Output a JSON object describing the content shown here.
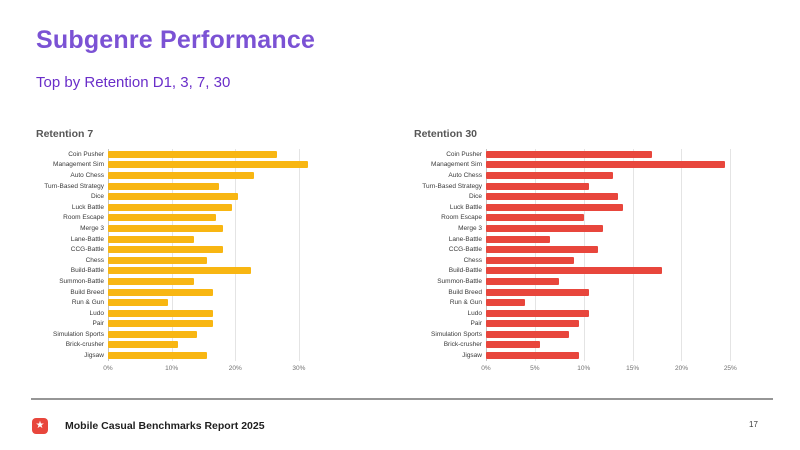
{
  "page": {
    "title": "Subgenre Performance",
    "subtitle": "Top by Retention D1, 3, 7, 30",
    "footer": {
      "logo_icon": "star-icon",
      "report_title": "Mobile Casual Benchmarks Report 2025",
      "page_number": "17"
    },
    "colors": {
      "title_purple": "#7b52d4",
      "subtitle_purple": "#6a2ec9",
      "retention7_yellow": "#f8b612",
      "retention30_red": "#e8463c",
      "footer_logo_red": "#e8463c"
    }
  },
  "chart_data": [
    {
      "type": "bar",
      "orientation": "horizontal",
      "title": "Retention 7",
      "bar_color": "#f8b612",
      "categories": [
        "Coin Pusher",
        "Management Sim",
        "Auto Chess",
        "Turn-Based Strategy",
        "Dice",
        "Luck Battle",
        "Room Escape",
        "Merge 3",
        "Lane-Battle",
        "CCG-Battle",
        "Chess",
        "Build-Battle",
        "Summon-Battle",
        "Build Breed",
        "Run & Gun",
        "Ludo",
        "Pair",
        "Simulation Sports",
        "Brick-crusher",
        "Jigsaw"
      ],
      "values": [
        26.5,
        31.5,
        23,
        17.5,
        20.5,
        19.5,
        17,
        18,
        13.5,
        18,
        15.5,
        22.5,
        13.5,
        16.5,
        9.5,
        16.5,
        16.5,
        14,
        11,
        15.5
      ],
      "x_tick_labels": [
        "0%",
        "10%",
        "20%",
        "30%"
      ],
      "x_tick_values": [
        0,
        10,
        20,
        30
      ],
      "xlim": [
        0,
        33
      ],
      "grid": true,
      "legend": false
    },
    {
      "type": "bar",
      "orientation": "horizontal",
      "title": "Retention 30",
      "bar_color": "#e8463c",
      "categories": [
        "Coin Pusher",
        "Management Sim",
        "Auto Chess",
        "Turn-Based Strategy",
        "Dice",
        "Luck Battle",
        "Room Escape",
        "Merge 3",
        "Lane-Battle",
        "CCG-Battle",
        "Chess",
        "Build-Battle",
        "Summon-Battle",
        "Build Breed",
        "Run & Gun",
        "Ludo",
        "Pair",
        "Simulation Sports",
        "Brick-crusher",
        "Jigsaw"
      ],
      "values": [
        17,
        24.5,
        13,
        10.5,
        13.5,
        14,
        10,
        12,
        6.5,
        11.5,
        9,
        18,
        7.5,
        10.5,
        4,
        10.5,
        9.5,
        8.5,
        5.5,
        9.5
      ],
      "x_tick_labels": [
        "0%",
        "5%",
        "10%",
        "15%",
        "20%",
        "25%"
      ],
      "x_tick_values": [
        0,
        5,
        10,
        15,
        20,
        25
      ],
      "xlim": [
        0,
        26.5
      ],
      "grid": true,
      "legend": false
    }
  ]
}
